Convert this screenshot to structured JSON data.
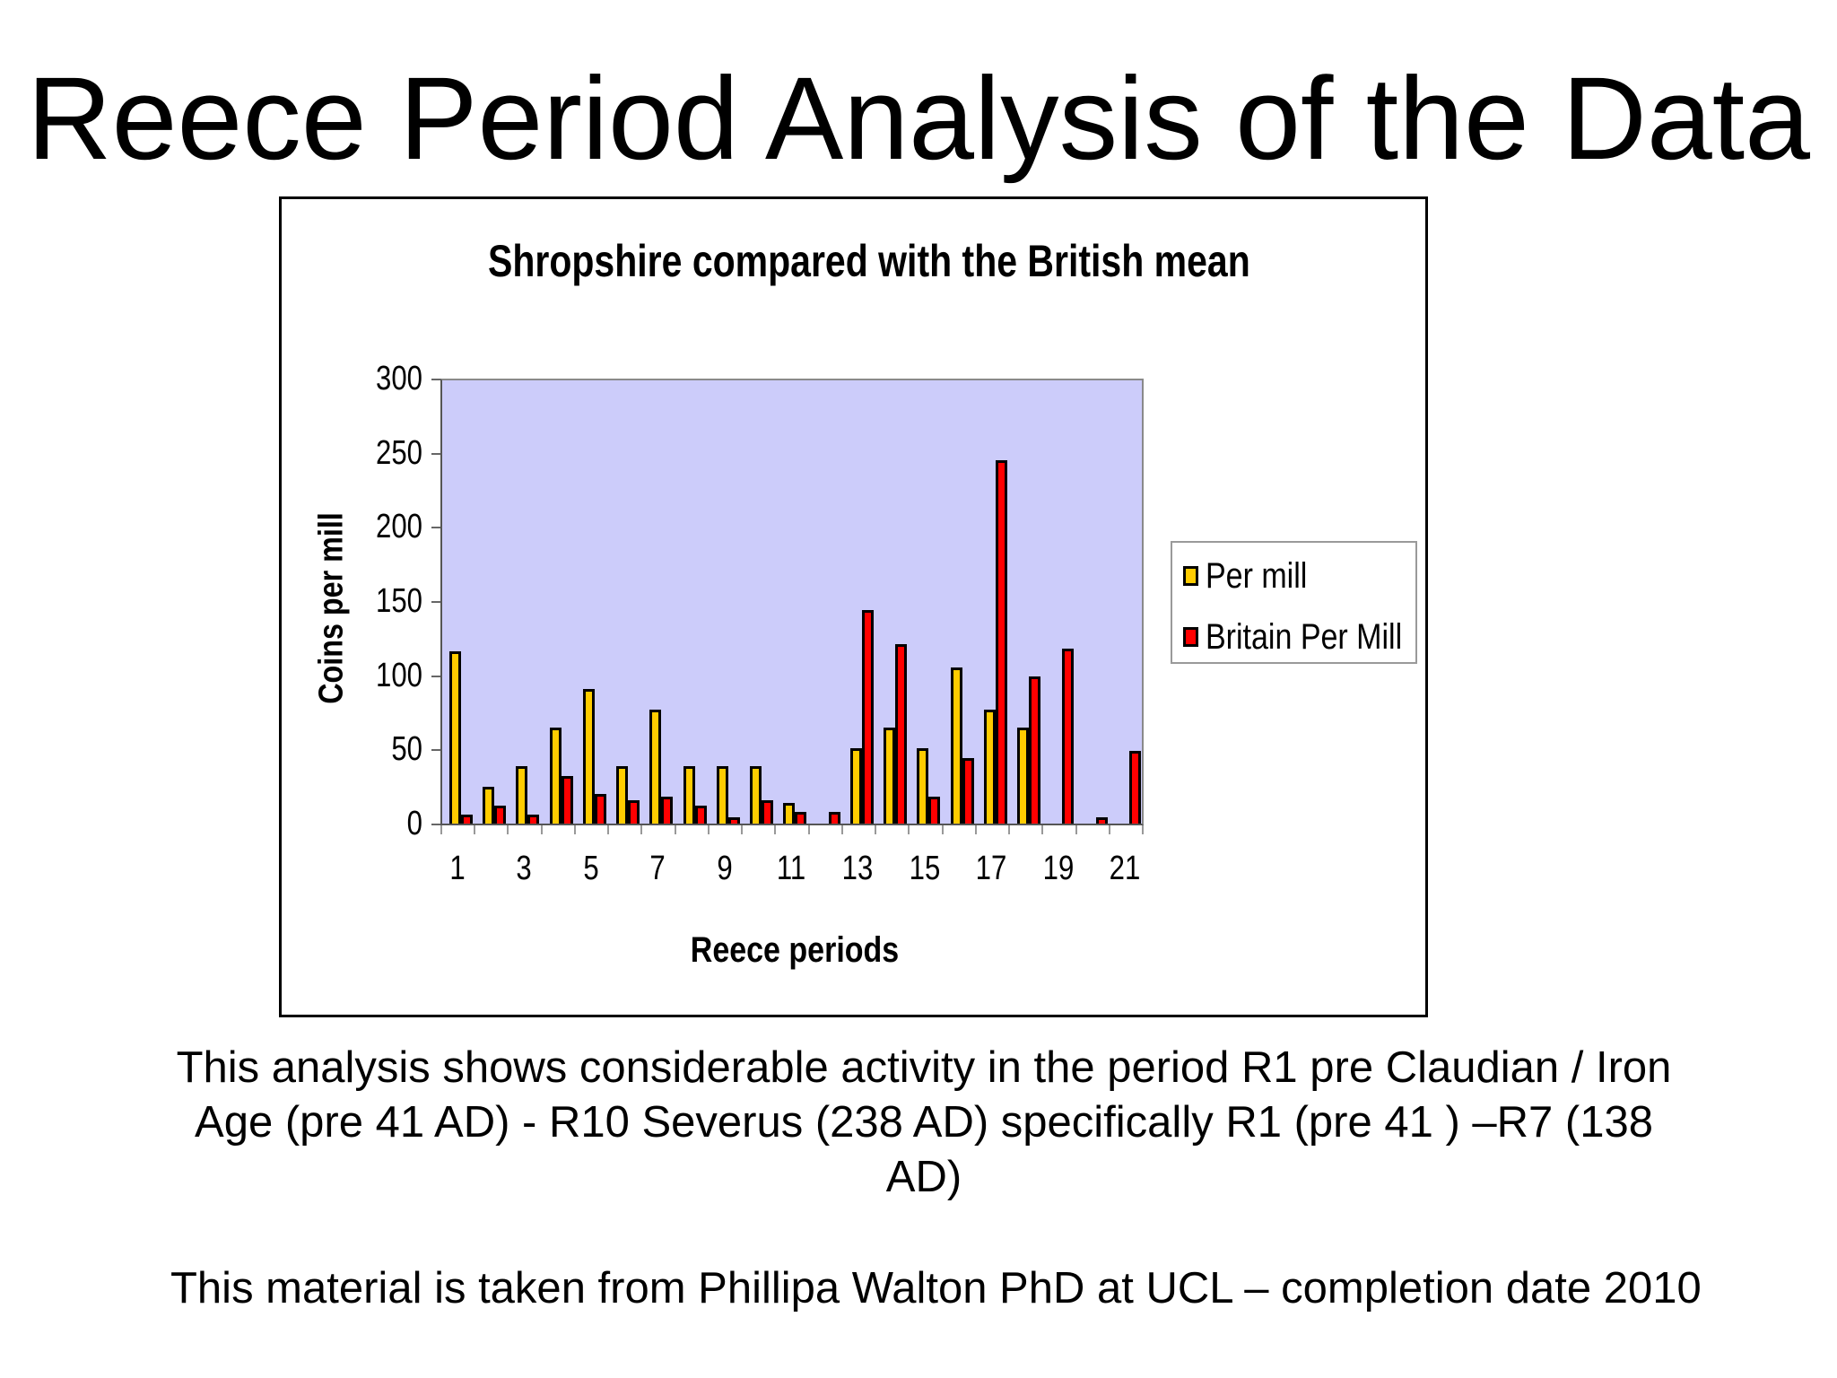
{
  "slide": {
    "title": "Reece Period Analysis of the Data",
    "body_text": "This analysis shows considerable activity in the period R1 pre Claudian / Iron Age (pre 41 AD) - R10 Severus (238 AD) specifically R1 (pre 41 ) –R7 (138 AD)",
    "source_text": "This material is taken from Phillipa Walton PhD at UCL – completion date 2010"
  },
  "colors": {
    "plot_background": "#ccccfa",
    "series_per_mill": "#ffcc00",
    "series_britain": "#ff0000"
  },
  "chart_data": {
    "type": "bar",
    "title": "Shropshire compared with the British mean",
    "xlabel": "Reece periods",
    "ylabel": "Coins per mill",
    "ylim": [
      0,
      300
    ],
    "yticks": [
      0,
      50,
      100,
      150,
      200,
      250,
      300
    ],
    "grid": false,
    "legend_position": "right",
    "categories": [
      "1",
      "2",
      "3",
      "4",
      "5",
      "6",
      "7",
      "8",
      "9",
      "10",
      "11",
      "12",
      "13",
      "14",
      "15",
      "16",
      "17",
      "18",
      "19",
      "20",
      "21"
    ],
    "x_tick_labels": [
      "1",
      "3",
      "5",
      "7",
      "9",
      "11",
      "13",
      "15",
      "17",
      "19",
      "21"
    ],
    "series": [
      {
        "name": "Per mill",
        "color": "#ffcc00",
        "values": [
          116,
          25,
          39,
          65,
          91,
          39,
          77,
          39,
          39,
          39,
          14,
          0,
          51,
          65,
          51,
          105,
          77,
          65,
          0,
          0,
          0
        ]
      },
      {
        "name": "Britain Per Mill",
        "color": "#ff0000",
        "values": [
          6,
          12,
          6,
          32,
          20,
          16,
          18,
          12,
          4,
          16,
          8,
          8,
          144,
          121,
          18,
          44,
          245,
          99,
          118,
          4,
          49
        ]
      }
    ]
  }
}
